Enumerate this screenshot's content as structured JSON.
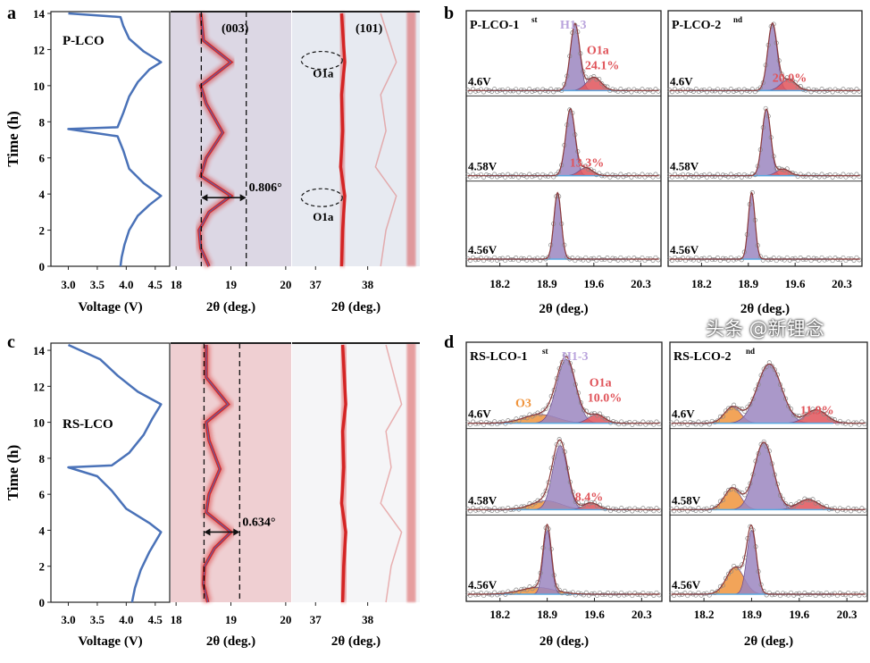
{
  "watermark": "头条 @新锂念",
  "colors": {
    "voltage_curve": "#4a72b8",
    "h13": "#9b86bf",
    "o1a": "#e0545a",
    "o3": "#f0943c",
    "baseline": "#5aa8e0",
    "fit": "#8b3a3a",
    "heat_peak": "#d42424"
  },
  "chart_data": [
    {
      "panel_label": "a",
      "sample_label": "P-LCO",
      "voltage_profile": {
        "type": "line",
        "xlabel": "Voltage (V)",
        "ylabel": "Time (h)",
        "xticks": [
          "3.0",
          "3.5",
          "4.0",
          "4.5"
        ],
        "yticks": [
          "0",
          "2",
          "4",
          "6",
          "8",
          "10",
          "12",
          "14"
        ],
        "xlim": [
          2.7,
          4.75
        ],
        "ylim": [
          0,
          14
        ],
        "curve": [
          [
            3.9,
            0
          ],
          [
            3.92,
            0.5
          ],
          [
            3.97,
            1.2
          ],
          [
            4.05,
            2.0
          ],
          [
            4.2,
            2.8
          ],
          [
            4.4,
            3.4
          ],
          [
            4.6,
            3.9
          ],
          [
            4.3,
            4.6
          ],
          [
            4.05,
            5.4
          ],
          [
            3.95,
            6.4
          ],
          [
            3.85,
            7.2
          ],
          [
            3.0,
            7.6
          ],
          [
            3.85,
            7.7
          ],
          [
            3.95,
            8.5
          ],
          [
            4.05,
            9.4
          ],
          [
            4.2,
            10.2
          ],
          [
            4.4,
            10.9
          ],
          [
            4.6,
            11.3
          ],
          [
            4.3,
            11.9
          ],
          [
            4.05,
            12.6
          ],
          [
            3.95,
            13.3
          ],
          [
            3.9,
            13.8
          ],
          [
            3.0,
            14.0
          ]
        ]
      },
      "xrd_003": {
        "type": "heatmap",
        "label": "(003)",
        "xlabel": "2θ (deg.)",
        "xticks": [
          "18",
          "19",
          "20"
        ],
        "xlim": [
          17.9,
          20.1
        ],
        "annotation": "0.806°",
        "dashed_lines": [
          18.46,
          19.28
        ],
        "arrow_time": 3.8,
        "peak_trace": [
          [
            18.6,
            0
          ],
          [
            18.45,
            1
          ],
          [
            18.42,
            2
          ],
          [
            18.6,
            3
          ],
          [
            19.0,
            3.9
          ],
          [
            18.45,
            5
          ],
          [
            18.55,
            6
          ],
          [
            18.85,
            7.4
          ],
          [
            18.55,
            9
          ],
          [
            18.45,
            10
          ],
          [
            19.0,
            11.3
          ],
          [
            18.5,
            12.5
          ],
          [
            18.45,
            14
          ]
        ],
        "background": "#dcd7e4"
      },
      "xrd_101": {
        "type": "heatmap",
        "label": "(101)",
        "xlabel": "2θ (deg.)",
        "xticks": [
          "37",
          "38"
        ],
        "xlim": [
          36.55,
          39.0
        ],
        "annotations": [
          {
            "text": "O1a",
            "two_theta": 37.12,
            "time": 11.4
          },
          {
            "text": "O1a",
            "two_theta": 37.12,
            "time": 3.8
          }
        ],
        "peak_trace": [
          [
            37.5,
            0
          ],
          [
            37.52,
            2
          ],
          [
            37.56,
            3.9
          ],
          [
            37.48,
            5.5
          ],
          [
            37.52,
            7.5
          ],
          [
            37.5,
            9.5
          ],
          [
            37.56,
            11.3
          ],
          [
            37.5,
            14
          ]
        ],
        "background": "#e7eaf1"
      }
    },
    {
      "panel_label": "c",
      "sample_label": "RS-LCO",
      "voltage_profile": {
        "type": "line",
        "xlabel": "Voltage (V)",
        "ylabel": "Time (h)",
        "xticks": [
          "3.0",
          "3.5",
          "4.0",
          "4.5"
        ],
        "yticks": [
          "0",
          "2",
          "4",
          "6",
          "8",
          "10",
          "12",
          "14"
        ],
        "xlim": [
          2.7,
          4.75
        ],
        "ylim": [
          0,
          14
        ],
        "curve": [
          [
            4.1,
            0
          ],
          [
            4.15,
            0.8
          ],
          [
            4.25,
            1.8
          ],
          [
            4.4,
            2.8
          ],
          [
            4.6,
            3.9
          ],
          [
            4.4,
            4.4
          ],
          [
            4.0,
            5.2
          ],
          [
            3.75,
            6.2
          ],
          [
            3.5,
            7.0
          ],
          [
            3.0,
            7.5
          ],
          [
            3.75,
            7.6
          ],
          [
            4.05,
            8.3
          ],
          [
            4.3,
            9.3
          ],
          [
            4.45,
            10.2
          ],
          [
            4.6,
            11.0
          ],
          [
            4.2,
            11.7
          ],
          [
            3.85,
            12.6
          ],
          [
            3.55,
            13.5
          ],
          [
            3.0,
            14.3
          ]
        ]
      },
      "xrd_003": {
        "type": "heatmap",
        "label": "",
        "xlabel": "2θ (deg.)",
        "xticks": [
          "18",
          "19",
          "20"
        ],
        "xlim": [
          17.9,
          20.1
        ],
        "annotation": "0.634°",
        "dashed_lines": [
          18.51,
          19.16
        ],
        "arrow_time": 3.9,
        "peak_trace": [
          [
            18.58,
            0
          ],
          [
            18.5,
            1
          ],
          [
            18.52,
            2
          ],
          [
            18.7,
            3
          ],
          [
            19.0,
            3.9
          ],
          [
            18.55,
            5
          ],
          [
            18.6,
            6
          ],
          [
            18.8,
            7.4
          ],
          [
            18.6,
            9
          ],
          [
            18.55,
            10
          ],
          [
            18.95,
            11
          ],
          [
            18.55,
            12.5
          ],
          [
            18.55,
            14.3
          ]
        ],
        "background": "#efcfd2"
      },
      "xrd_101": {
        "type": "heatmap",
        "label": "",
        "xlabel": "2θ (deg.)",
        "xticks": [
          "37",
          "38"
        ],
        "xlim": [
          36.55,
          39.0
        ],
        "annotations": [],
        "peak_trace": [
          [
            37.52,
            0
          ],
          [
            37.54,
            2
          ],
          [
            37.58,
            3.9
          ],
          [
            37.5,
            5.5
          ],
          [
            37.54,
            7.5
          ],
          [
            37.52,
            9.5
          ],
          [
            37.58,
            11
          ],
          [
            37.52,
            14.3
          ]
        ],
        "background": "#f5f5f7"
      }
    },
    {
      "panel_label": "b",
      "type": "line",
      "xlabel": "2θ (deg.)",
      "xticks": [
        "18.2",
        "18.9",
        "19.6",
        "20.3"
      ],
      "xlim": [
        17.7,
        20.6
      ],
      "phase_labels": {
        "h13": "H1-3",
        "o1a": "O1a"
      },
      "subplots": [
        {
          "title": "P-LCO-1",
          "sup": "st",
          "rows": [
            {
              "voltage": "4.6V",
              "percent": "24.1%",
              "show_o1a_label": true,
              "peaks": [
                {
                  "phase": "h13",
                  "center": 19.32,
                  "sigma": 0.07,
                  "height": 1.0
                },
                {
                  "phase": "o1a",
                  "center": 19.6,
                  "sigma": 0.11,
                  "height": 0.2
                }
              ]
            },
            {
              "voltage": "4.58V",
              "percent": "13.3%",
              "peaks": [
                {
                  "phase": "h13",
                  "center": 19.25,
                  "sigma": 0.07,
                  "height": 1.0
                },
                {
                  "phase": "o1a",
                  "center": 19.48,
                  "sigma": 0.1,
                  "height": 0.12
                }
              ]
            },
            {
              "voltage": "4.56V",
              "peaks": [
                {
                  "phase": "h13",
                  "center": 19.06,
                  "sigma": 0.055,
                  "height": 1.0
                }
              ]
            }
          ]
        },
        {
          "title": "P-LCO-2",
          "sup": "nd",
          "rows": [
            {
              "voltage": "4.6V",
              "percent": "20.0%",
              "peaks": [
                {
                  "phase": "h13",
                  "center": 19.26,
                  "sigma": 0.07,
                  "height": 1.0
                },
                {
                  "phase": "o1a",
                  "center": 19.5,
                  "sigma": 0.11,
                  "height": 0.17
                }
              ]
            },
            {
              "voltage": "4.58V",
              "peaks": [
                {
                  "phase": "h13",
                  "center": 19.17,
                  "sigma": 0.065,
                  "height": 1.0
                },
                {
                  "phase": "o1a",
                  "center": 19.42,
                  "sigma": 0.1,
                  "height": 0.1
                }
              ]
            },
            {
              "voltage": "4.56V",
              "peaks": [
                {
                  "phase": "h13",
                  "center": 18.95,
                  "sigma": 0.05,
                  "height": 1.0
                }
              ]
            }
          ]
        }
      ]
    },
    {
      "panel_label": "d",
      "type": "line",
      "xlabel": "2θ (deg.)",
      "xticks": [
        "18.2",
        "18.9",
        "19.6",
        "20.3"
      ],
      "xlim": [
        17.7,
        20.6
      ],
      "phase_labels": {
        "h13": "H1-3",
        "o1a": "O1a",
        "o3": "O3"
      },
      "subplots": [
        {
          "title": "RS-LCO-1",
          "sup": "st",
          "rows": [
            {
              "voltage": "4.6V",
              "percent": "10.0%",
              "show_o1a_label": true,
              "show_o3_label": true,
              "peaks": [
                {
                  "phase": "o3",
                  "center": 18.8,
                  "sigma": 0.25,
                  "height": 0.13
                },
                {
                  "phase": "h13",
                  "center": 19.18,
                  "sigma": 0.14,
                  "height": 0.95
                },
                {
                  "phase": "o1a",
                  "center": 19.63,
                  "sigma": 0.12,
                  "height": 0.13
                }
              ]
            },
            {
              "voltage": "4.58V",
              "percent": "8.4%",
              "peaks": [
                {
                  "phase": "o3",
                  "center": 18.89,
                  "sigma": 0.22,
                  "height": 0.13
                },
                {
                  "phase": "h13",
                  "center": 19.09,
                  "sigma": 0.11,
                  "height": 0.95
                },
                {
                  "phase": "o1a",
                  "center": 19.55,
                  "sigma": 0.11,
                  "height": 0.1
                }
              ]
            },
            {
              "voltage": "4.56V",
              "peaks": [
                {
                  "phase": "o3",
                  "center": 18.76,
                  "sigma": 0.25,
                  "height": 0.1
                },
                {
                  "phase": "h13",
                  "center": 18.9,
                  "sigma": 0.06,
                  "height": 0.95
                }
              ]
            }
          ]
        },
        {
          "title": "RS-LCO-2",
          "sup": "nd",
          "rows": [
            {
              "voltage": "4.6V",
              "percent": "11.9%",
              "peaks": [
                {
                  "phase": "o3",
                  "center": 18.62,
                  "sigma": 0.12,
                  "height": 0.24
                },
                {
                  "phase": "h13",
                  "center": 19.16,
                  "sigma": 0.18,
                  "height": 0.88
                },
                {
                  "phase": "o1a",
                  "center": 19.85,
                  "sigma": 0.15,
                  "height": 0.2
                }
              ]
            },
            {
              "voltage": "4.58V",
              "peaks": [
                {
                  "phase": "o3",
                  "center": 18.62,
                  "sigma": 0.12,
                  "height": 0.32
                },
                {
                  "phase": "h13",
                  "center": 19.08,
                  "sigma": 0.14,
                  "height": 1.0
                },
                {
                  "phase": "o1a",
                  "center": 19.73,
                  "sigma": 0.15,
                  "height": 0.15
                }
              ]
            },
            {
              "voltage": "4.56V",
              "peaks": [
                {
                  "phase": "o3",
                  "center": 18.66,
                  "sigma": 0.13,
                  "height": 0.4
                },
                {
                  "phase": "h13",
                  "center": 18.9,
                  "sigma": 0.07,
                  "height": 0.95
                }
              ]
            }
          ]
        }
      ]
    }
  ]
}
